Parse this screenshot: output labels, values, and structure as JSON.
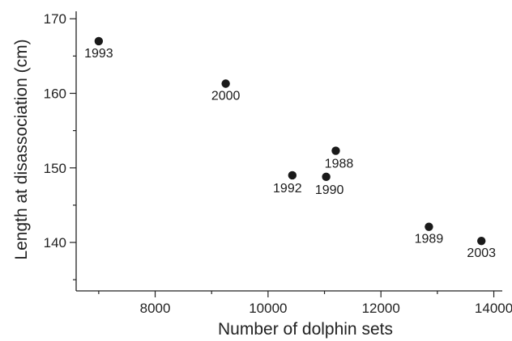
{
  "chart_data": {
    "type": "scatter",
    "title": "",
    "xlabel": "Number of dolphin sets",
    "ylabel": "Length at disassociation (cm)",
    "xlim": [
      6600,
      14150
    ],
    "ylim": [
      133.5,
      171
    ],
    "x_ticks": [
      8000,
      10000,
      12000,
      14000
    ],
    "y_ticks": [
      140,
      150,
      160,
      170
    ],
    "grid": false,
    "legend": "none",
    "marker_color": "#1a1a1a",
    "points": [
      {
        "label": "1993",
        "x": 7000,
        "y": 167.0,
        "label_pos": "below"
      },
      {
        "label": "2000",
        "x": 9250,
        "y": 161.3,
        "label_pos": "below"
      },
      {
        "label": "1992",
        "x": 10430,
        "y": 149.0,
        "label_pos": "below-left"
      },
      {
        "label": "1990",
        "x": 11030,
        "y": 148.8,
        "label_pos": "below-right"
      },
      {
        "label": "1988",
        "x": 11200,
        "y": 152.3,
        "label_pos": "below-right"
      },
      {
        "label": "1989",
        "x": 12850,
        "y": 142.1,
        "label_pos": "below"
      },
      {
        "label": "2003",
        "x": 13780,
        "y": 140.2,
        "label_pos": "below"
      }
    ]
  }
}
